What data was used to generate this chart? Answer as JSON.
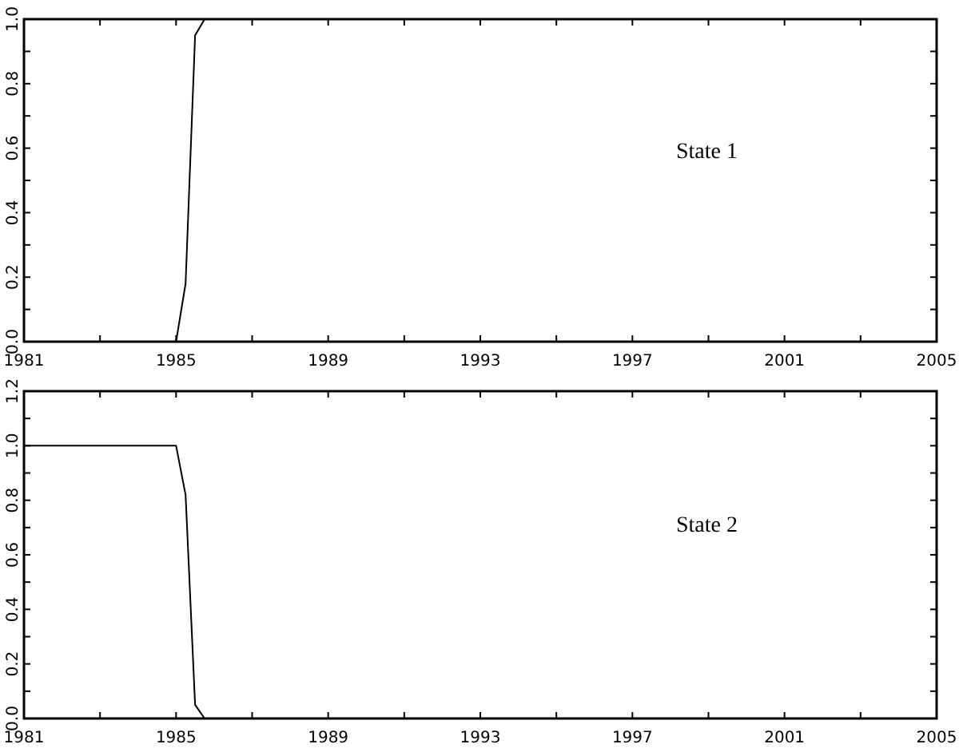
{
  "chart_data": [
    {
      "type": "line",
      "annotations": [
        "State 1"
      ],
      "series": [
        {
          "color": "#000000",
          "x": [
            1981,
            1985,
            1985.25,
            1985.5,
            1985.75,
            2004.75
          ],
          "values": [
            0,
            0,
            0.18,
            0.95,
            1,
            1
          ]
        }
      ],
      "xlim": [
        1981,
        2005
      ],
      "xticks": [
        1981,
        {
          "value": 1983,
          "label": null
        },
        1985,
        {
          "value": 1987,
          "label": null
        },
        1989,
        {
          "value": 1991,
          "label": null
        },
        1993,
        {
          "value": 1995,
          "label": null
        },
        1997,
        {
          "value": 1999,
          "label": null
        },
        2001,
        {
          "value": 2003,
          "label": null
        },
        2005
      ],
      "ylim": [
        0,
        1
      ],
      "yticks": [
        {
          "value": 0,
          "label": "0.0"
        },
        {
          "value": 0.1,
          "label": null
        },
        0.2,
        {
          "value": 0.3,
          "label": null
        },
        0.4,
        {
          "value": 0.5,
          "label": null
        },
        0.6,
        {
          "value": 0.7,
          "label": null
        },
        0.8,
        {
          "value": 0.9,
          "label": null
        },
        {
          "value": 1,
          "label": "1.0"
        }
      ],
      "grid": false
    },
    {
      "type": "line",
      "annotations": [
        "State 2"
      ],
      "series": [
        {
          "color": "#000000",
          "x": [
            1981,
            1985,
            1985.25,
            1985.5,
            1985.75,
            2004.75
          ],
          "values": [
            1,
            1,
            0.82,
            0.05,
            0,
            0
          ]
        }
      ],
      "xlim": [
        1981,
        2005
      ],
      "xticks": [
        1981,
        {
          "value": 1983,
          "label": null
        },
        1985,
        {
          "value": 1987,
          "label": null
        },
        1989,
        {
          "value": 1991,
          "label": null
        },
        1993,
        {
          "value": 1995,
          "label": null
        },
        1997,
        {
          "value": 1999,
          "label": null
        },
        2001,
        {
          "value": 2003,
          "label": null
        },
        2005
      ],
      "ylim": [
        0,
        1.2
      ],
      "yticks": [
        {
          "value": 0,
          "label": "0.0"
        },
        {
          "value": 0.1,
          "label": null
        },
        0.2,
        {
          "value": 0.3,
          "label": null
        },
        0.4,
        {
          "value": 0.5,
          "label": null
        },
        0.6,
        {
          "value": 0.7,
          "label": null
        },
        0.8,
        {
          "value": 0.9,
          "label": null
        },
        {
          "value": 1,
          "label": "1.0"
        },
        {
          "value": 1.1,
          "label": null
        },
        1.2
      ],
      "grid": false
    }
  ]
}
